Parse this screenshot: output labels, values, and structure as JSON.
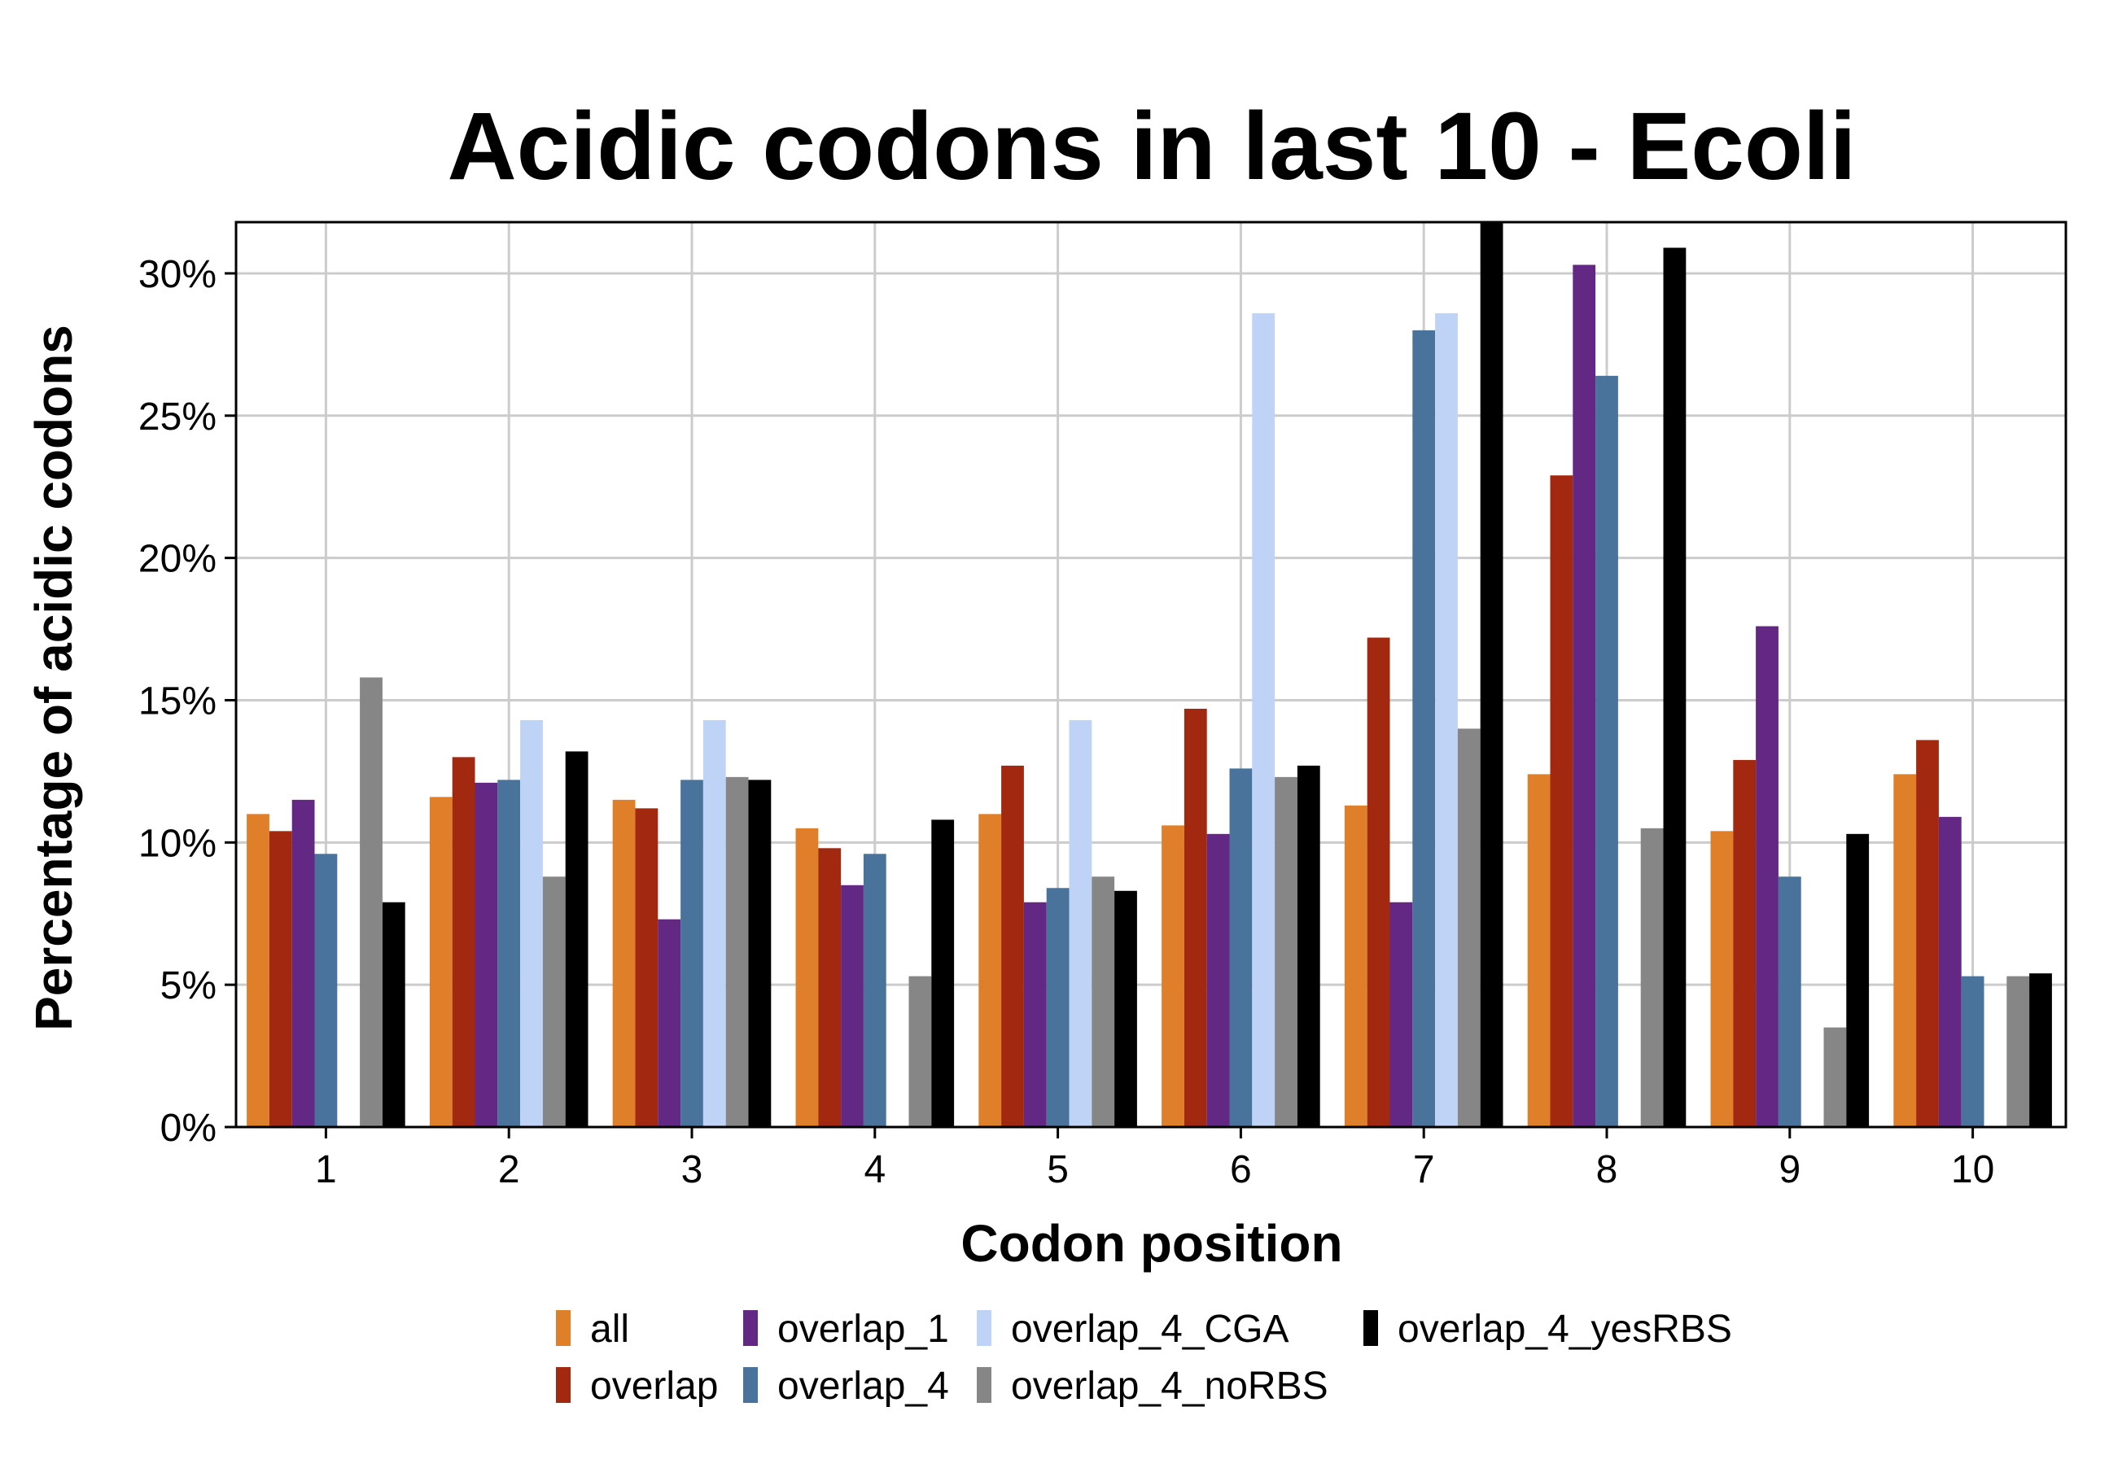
{
  "chart_data": {
    "type": "bar",
    "title": "Acidic codons in last 10 - Ecoli",
    "xlabel": "Codon position",
    "ylabel": "Percentage of acidic codons",
    "categories": [
      "1",
      "2",
      "3",
      "4",
      "5",
      "6",
      "7",
      "8",
      "9",
      "10"
    ],
    "ylim": [
      0,
      31.8
    ],
    "yticks": [
      0,
      5,
      10,
      15,
      20,
      25,
      30
    ],
    "ytick_labels": [
      "0%",
      "5%",
      "10%",
      "15%",
      "20%",
      "25%",
      "30%"
    ],
    "grid": true,
    "legend_position": "bottom",
    "series": [
      {
        "name": "all",
        "color": "#E07F2A",
        "values": [
          11.0,
          11.6,
          11.5,
          10.5,
          11.0,
          10.6,
          11.3,
          12.4,
          10.4,
          12.4
        ]
      },
      {
        "name": "overlap",
        "color": "#A2280F",
        "values": [
          10.4,
          13.0,
          11.2,
          9.8,
          12.7,
          14.7,
          17.2,
          22.9,
          12.9,
          13.6
        ]
      },
      {
        "name": "overlap_1",
        "color": "#632883",
        "values": [
          11.5,
          12.1,
          7.3,
          8.5,
          7.9,
          10.3,
          7.9,
          30.3,
          17.6,
          10.9
        ]
      },
      {
        "name": "overlap_4",
        "color": "#4A739C",
        "values": [
          9.6,
          12.2,
          12.2,
          9.6,
          8.4,
          12.6,
          28.0,
          26.4,
          8.8,
          5.3
        ]
      },
      {
        "name": "overlap_4_CGA",
        "color": "#BFD3F7",
        "values": [
          0,
          14.3,
          14.3,
          0,
          14.3,
          28.6,
          28.6,
          0,
          0,
          0
        ]
      },
      {
        "name": "overlap_4_noRBS",
        "color": "#868686",
        "values": [
          15.8,
          8.8,
          12.3,
          5.3,
          8.8,
          12.3,
          14.0,
          10.5,
          3.5,
          5.3
        ]
      },
      {
        "name": "overlap_4_yesRBS",
        "color": "#000000",
        "values": [
          7.9,
          13.2,
          12.2,
          10.8,
          8.3,
          12.7,
          31.8,
          30.9,
          10.3,
          5.4
        ]
      }
    ]
  }
}
